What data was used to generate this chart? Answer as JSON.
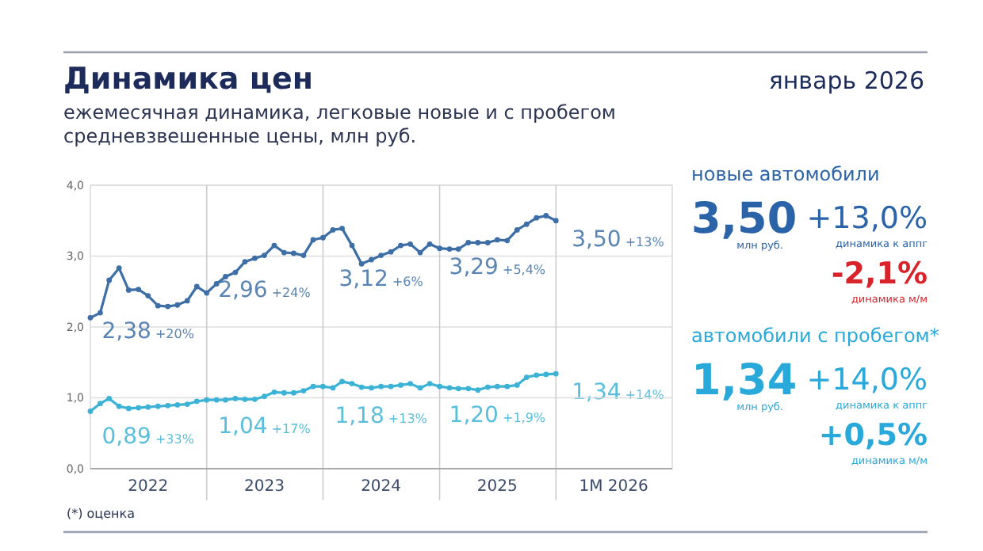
{
  "chart_data": [
    {
      "type": "line",
      "title": "Динамика цен",
      "subtitle": "ежемесячная динамика, легковые новые и с пробегом\nсредневзвешенные цены, млн руб.",
      "x": [
        "2022-01",
        "2022-02",
        "2022-03",
        "2022-04",
        "2022-05",
        "2022-06",
        "2022-07",
        "2022-08",
        "2022-09",
        "2022-10",
        "2022-11",
        "2022-12",
        "2023-01",
        "2023-02",
        "2023-03",
        "2023-04",
        "2023-05",
        "2023-06",
        "2023-07",
        "2023-08",
        "2023-09",
        "2023-10",
        "2023-11",
        "2023-12",
        "2024-01",
        "2024-02",
        "2024-03",
        "2024-04",
        "2024-05",
        "2024-06",
        "2024-07",
        "2024-08",
        "2024-09",
        "2024-10",
        "2024-11",
        "2024-12",
        "2025-01",
        "2025-02",
        "2025-03",
        "2025-04",
        "2025-05",
        "2025-06",
        "2025-07",
        "2025-08",
        "2025-09",
        "2025-10",
        "2025-11",
        "2025-12",
        "2026-01"
      ],
      "series": [
        {
          "color": "#3d6fa6",
          "values": [
            2.13,
            2.2,
            2.66,
            2.83,
            2.52,
            2.53,
            2.44,
            2.3,
            2.29,
            2.31,
            2.37,
            2.57,
            2.48,
            2.61,
            2.71,
            2.77,
            2.92,
            2.97,
            3.01,
            3.15,
            3.05,
            3.04,
            3.01,
            3.23,
            3.26,
            3.37,
            3.39,
            3.15,
            2.89,
            2.95,
            3.01,
            3.06,
            3.15,
            3.17,
            3.05,
            3.17,
            3.11,
            3.1,
            3.1,
            3.19,
            3.19,
            3.19,
            3.23,
            3.22,
            3.37,
            3.45,
            3.54,
            3.57,
            3.5
          ]
        },
        {
          "color": "#3cb3d6",
          "values": [
            0.81,
            0.92,
            0.99,
            0.88,
            0.85,
            0.86,
            0.87,
            0.88,
            0.89,
            0.9,
            0.91,
            0.95,
            0.97,
            0.97,
            0.97,
            0.99,
            0.98,
            0.98,
            1.02,
            1.08,
            1.07,
            1.07,
            1.1,
            1.16,
            1.16,
            1.14,
            1.23,
            1.2,
            1.15,
            1.14,
            1.16,
            1.16,
            1.18,
            1.2,
            1.14,
            1.2,
            1.16,
            1.14,
            1.13,
            1.13,
            1.11,
            1.15,
            1.16,
            1.16,
            1.18,
            1.29,
            1.32,
            1.33,
            1.34
          ]
        }
      ],
      "xlim": [
        "2022-01",
        "2027-01"
      ],
      "xticks": [
        {
          "value": "2022-07",
          "label": "2022"
        },
        {
          "value": "2023-01",
          "label": null
        },
        {
          "value": "2023-07",
          "label": "2023"
        },
        {
          "value": "2024-01",
          "label": null
        },
        {
          "value": "2024-07",
          "label": "2024"
        },
        {
          "value": "2025-01",
          "label": null
        },
        {
          "value": "2025-07",
          "label": "2025"
        },
        {
          "value": "2026-01",
          "label": null
        },
        {
          "value": "2026-07",
          "label": "1M 2026"
        }
      ],
      "ylim": [
        0,
        4
      ],
      "yticks": [
        {
          "value": 0,
          "label": "0,0"
        },
        {
          "value": 1,
          "label": "1,0"
        },
        {
          "value": 2,
          "label": "2,0"
        },
        {
          "value": 3,
          "label": "3,0"
        },
        {
          "value": 4,
          "label": "4,0"
        }
      ],
      "grid": true,
      "marker": "circle",
      "annotations": [
        "январь 2026",
        "(*) оценка",
        "3,50 +13%",
        "1,34 +14%",
        {
          "text": "2,38 +20%",
          "x": "2022-07",
          "y": 2.38
        },
        {
          "text": "2,96 +24%",
          "x": "2023-07",
          "y": 2.96
        },
        {
          "text": "3,12 +6%",
          "x": "2024-07",
          "y": 3.12
        },
        {
          "text": "3,29 +5,4%",
          "x": "2025-07",
          "y": 3.29
        },
        {
          "text": "0,89 +33%",
          "x": "2022-07",
          "y": 0.89
        },
        {
          "text": "1,04 +17%",
          "x": "2023-07",
          "y": 1.04
        },
        {
          "text": "1,18 +13%",
          "x": "2024-07",
          "y": 1.18
        },
        {
          "text": "1,20 +1,9%",
          "x": "2025-07",
          "y": 1.2
        }
      ]
    },
    {
      "type": "other",
      "annotations": [
        "новые автомобили",
        "3,50",
        "млн руб.",
        "+13,0%",
        "динамика к аппг",
        "-2,1%",
        "динамика м/м",
        "автомобили с пробегом*",
        "1,34",
        "млн руб.",
        "+14,0%",
        "динамика к аппг",
        "+0,5%",
        "динамика м/м"
      ],
      "colors": [
        "#2a63a8",
        "#2a63a8",
        "#2a63a8",
        "#2a63a8",
        "#2a63a8",
        "#d8232a",
        "#d8232a",
        "#29a9d9",
        "#29a9d9",
        "#29a9d9",
        "#29a9d9",
        "#29a9d9",
        "#29a9d9",
        "#29a9d9"
      ]
    }
  ]
}
